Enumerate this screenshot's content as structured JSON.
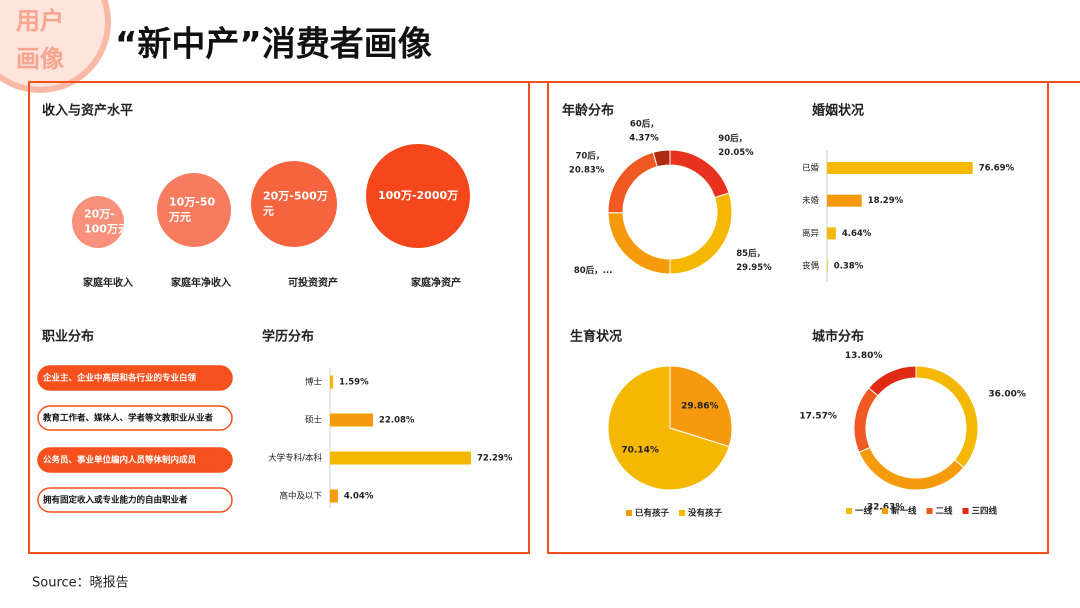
{
  "badge": [
    "用户",
    "画像"
  ],
  "title": "“新中产”消费者画像",
  "income": {
    "title": "收入与资产水平",
    "items": [
      {
        "lines": [
          "20万-",
          "100万元"
        ],
        "label": "家庭年收入"
      },
      {
        "lines": [
          "10万-50",
          "万元"
        ],
        "label": "家庭年净收入"
      },
      {
        "lines": [
          "20万-500万",
          "元"
        ],
        "label": "可投资资产"
      },
      {
        "lines": [
          "100万-2000万"
        ],
        "label": "家庭净资产"
      }
    ]
  },
  "occupation": {
    "title": "职业分布",
    "items": [
      {
        "text": "企业主、企业中高层和各行业的专业白领",
        "filled": true
      },
      {
        "text": "教育工作者、媒体人、学者等文教职业从业者",
        "filled": false
      },
      {
        "text": "公务员、事业单位编内人员等体制内成员",
        "filled": true
      },
      {
        "text": "拥有固定收入或专业能力的自由职业者",
        "filled": false
      }
    ]
  },
  "chart_data": [
    {
      "type": "bar",
      "orientation": "horizontal",
      "title": "学历分布",
      "categories": [
        "博士",
        "硕士",
        "大学专科/本科",
        "高中及以下"
      ],
      "values": [
        1.59,
        22.08,
        72.29,
        4.04
      ],
      "value_labels": [
        "1.59%",
        "22.08%",
        "72.29%",
        "4.04%"
      ],
      "colors": [
        "#f5b800",
        "#f59a0c",
        "#f5b800",
        "#f59a0c"
      ]
    },
    {
      "type": "donut",
      "title": "年龄分布",
      "categories": [
        "90后，",
        "85后，",
        "80后，...",
        "70后，",
        "60后，"
      ],
      "values": [
        20.05,
        29.95,
        24.8,
        20.83,
        4.37
      ],
      "value_labels": [
        "20.05%",
        "29.95%",
        null,
        "20.83%",
        "4.37%"
      ],
      "colors": [
        "#e8321e",
        "#f5b800",
        "#f59a0c",
        "#f05a22",
        "#b02a12"
      ],
      "legend": false
    },
    {
      "type": "bar",
      "orientation": "horizontal",
      "title": "婚姻状况",
      "categories": [
        "已婚",
        "未婚",
        "离异",
        "丧偶"
      ],
      "values": [
        76.69,
        18.29,
        4.64,
        0.38
      ],
      "value_labels": [
        "76.69%",
        "18.29%",
        "4.64%",
        "0.38%"
      ],
      "colors": [
        "#f5b800",
        "#f59a0c",
        "#f5b800",
        "#f5b800"
      ]
    },
    {
      "type": "pie",
      "title": "生育状况",
      "categories": [
        "已有孩子",
        "没有孩子"
      ],
      "values": [
        29.86,
        70.14
      ],
      "value_labels": [
        "29.86%",
        "70.14%"
      ],
      "colors": [
        "#f59a0c",
        "#f5b800"
      ],
      "legend": true
    },
    {
      "type": "donut",
      "title": "城市分布",
      "categories": [
        "一线",
        "新一线",
        "二线",
        "三四线"
      ],
      "values": [
        36,
        32.63,
        17.57,
        13.8
      ],
      "value_labels": [
        "36.00%",
        "32.63%",
        "17.57%",
        "13.80%"
      ],
      "colors": [
        "#f5b800",
        "#f59a0c",
        "#f05a22",
        "#e02a14"
      ],
      "legend": true
    }
  ],
  "source": "Source：晓报告"
}
